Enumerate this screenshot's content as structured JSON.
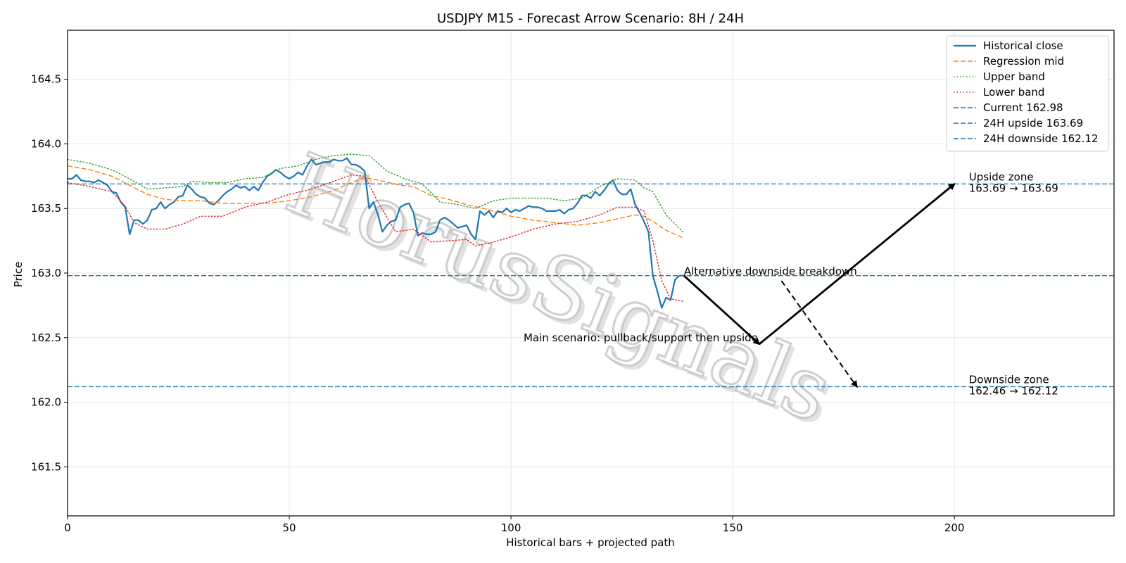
{
  "chart_data": {
    "type": "line",
    "title": "USDJPY M15 - Forecast Arrow Scenario: 8H / 24H",
    "xlabel": "Historical bars + projected path",
    "ylabel": "Price",
    "xlim": [
      0,
      236
    ],
    "ylim": [
      161.12,
      164.88
    ],
    "xticks": [
      0,
      50,
      100,
      150,
      200
    ],
    "yticks": [
      161.5,
      162.0,
      162.5,
      163.0,
      163.5,
      164.0,
      164.5
    ],
    "xtick_labels": [
      "0",
      "50",
      "100",
      "150",
      "200"
    ],
    "ytick_labels": [
      "161.5",
      "162.0",
      "162.5",
      "163.0",
      "163.5",
      "164.0",
      "164.5"
    ],
    "grid": true,
    "legend_position": "top-right",
    "series": [
      {
        "name": "Historical close",
        "color": "#1f77b4",
        "style": "solid",
        "points": [
          [
            0,
            163.73
          ],
          [
            1,
            163.73
          ],
          [
            2,
            163.76
          ],
          [
            3,
            163.72
          ],
          [
            4,
            163.71
          ],
          [
            5,
            163.71
          ],
          [
            6,
            163.7
          ],
          [
            7,
            163.72
          ],
          [
            8,
            163.7
          ],
          [
            9,
            163.68
          ],
          [
            10,
            163.63
          ],
          [
            11,
            163.62
          ],
          [
            12,
            163.55
          ],
          [
            13,
            163.51
          ],
          [
            14,
            163.3
          ],
          [
            15,
            163.41
          ],
          [
            16,
            163.41
          ],
          [
            17,
            163.38
          ],
          [
            18,
            163.41
          ],
          [
            19,
            163.49
          ],
          [
            20,
            163.5
          ],
          [
            21,
            163.55
          ],
          [
            22,
            163.5
          ],
          [
            23,
            163.53
          ],
          [
            24,
            163.55
          ],
          [
            25,
            163.59
          ],
          [
            26,
            163.6
          ],
          [
            27,
            163.68
          ],
          [
            28,
            163.65
          ],
          [
            29,
            163.61
          ],
          [
            30,
            163.59
          ],
          [
            31,
            163.58
          ],
          [
            32,
            163.54
          ],
          [
            33,
            163.53
          ],
          [
            34,
            163.56
          ],
          [
            35,
            163.6
          ],
          [
            36,
            163.63
          ],
          [
            37,
            163.65
          ],
          [
            38,
            163.68
          ],
          [
            39,
            163.66
          ],
          [
            40,
            163.67
          ],
          [
            41,
            163.64
          ],
          [
            42,
            163.67
          ],
          [
            43,
            163.64
          ],
          [
            44,
            163.7
          ],
          [
            45,
            163.75
          ],
          [
            46,
            163.77
          ],
          [
            47,
            163.8
          ],
          [
            48,
            163.78
          ],
          [
            49,
            163.75
          ],
          [
            50,
            163.73
          ],
          [
            51,
            163.75
          ],
          [
            52,
            163.78
          ],
          [
            53,
            163.76
          ],
          [
            54,
            163.83
          ],
          [
            55,
            163.88
          ],
          [
            56,
            163.84
          ],
          [
            57,
            163.85
          ],
          [
            58,
            163.86
          ],
          [
            59,
            163.86
          ],
          [
            60,
            163.88
          ],
          [
            61,
            163.87
          ],
          [
            62,
            163.87
          ],
          [
            63,
            163.89
          ],
          [
            64,
            163.84
          ],
          [
            65,
            163.84
          ],
          [
            66,
            163.82
          ],
          [
            67,
            163.79
          ],
          [
            68,
            163.5
          ],
          [
            69,
            163.55
          ],
          [
            70,
            163.45
          ],
          [
            71,
            163.32
          ],
          [
            72,
            163.37
          ],
          [
            73,
            163.4
          ],
          [
            74,
            163.41
          ],
          [
            75,
            163.51
          ],
          [
            76,
            163.53
          ],
          [
            77,
            163.54
          ],
          [
            78,
            163.47
          ],
          [
            79,
            163.29
          ],
          [
            80,
            163.31
          ],
          [
            81,
            163.3
          ],
          [
            82,
            163.3
          ],
          [
            83,
            163.32
          ],
          [
            84,
            163.41
          ],
          [
            85,
            163.43
          ],
          [
            86,
            163.41
          ],
          [
            87,
            163.38
          ],
          [
            88,
            163.35
          ],
          [
            89,
            163.36
          ],
          [
            90,
            163.37
          ],
          [
            91,
            163.3
          ],
          [
            92,
            163.26
          ],
          [
            93,
            163.48
          ],
          [
            94,
            163.45
          ],
          [
            95,
            163.48
          ],
          [
            96,
            163.43
          ],
          [
            97,
            163.48
          ],
          [
            98,
            163.47
          ],
          [
            99,
            163.5
          ],
          [
            100,
            163.47
          ],
          [
            101,
            163.49
          ],
          [
            102,
            163.48
          ],
          [
            103,
            163.5
          ],
          [
            104,
            163.52
          ],
          [
            105,
            163.51
          ],
          [
            106,
            163.51
          ],
          [
            107,
            163.5
          ],
          [
            108,
            163.48
          ],
          [
            109,
            163.48
          ],
          [
            110,
            163.48
          ],
          [
            111,
            163.49
          ],
          [
            112,
            163.46
          ],
          [
            113,
            163.49
          ],
          [
            114,
            163.5
          ],
          [
            115,
            163.54
          ],
          [
            116,
            163.6
          ],
          [
            117,
            163.6
          ],
          [
            118,
            163.58
          ],
          [
            119,
            163.63
          ],
          [
            120,
            163.6
          ],
          [
            121,
            163.64
          ],
          [
            122,
            163.69
          ],
          [
            123,
            163.72
          ],
          [
            124,
            163.64
          ],
          [
            125,
            163.61
          ],
          [
            126,
            163.61
          ],
          [
            127,
            163.65
          ],
          [
            128,
            163.53
          ],
          [
            129,
            163.47
          ],
          [
            130,
            163.4
          ],
          [
            131,
            163.32
          ],
          [
            132,
            162.98
          ],
          [
            133,
            162.86
          ],
          [
            134,
            162.73
          ],
          [
            135,
            162.81
          ],
          [
            136,
            162.79
          ],
          [
            137,
            162.95
          ],
          [
            138,
            162.98
          ],
          [
            139,
            162.98
          ]
        ]
      },
      {
        "name": "Regression mid",
        "color": "#ff7f0e",
        "style": "dashed",
        "points": [
          [
            0,
            163.83
          ],
          [
            5,
            163.8
          ],
          [
            10,
            163.75
          ],
          [
            14,
            163.68
          ],
          [
            18,
            163.61
          ],
          [
            22,
            163.57
          ],
          [
            26,
            163.56
          ],
          [
            30,
            163.56
          ],
          [
            35,
            163.54
          ],
          [
            40,
            163.54
          ],
          [
            45,
            163.54
          ],
          [
            50,
            163.56
          ],
          [
            55,
            163.59
          ],
          [
            60,
            163.64
          ],
          [
            64,
            163.7
          ],
          [
            67,
            163.74
          ],
          [
            70,
            163.72
          ],
          [
            75,
            163.68
          ],
          [
            78,
            163.67
          ],
          [
            82,
            163.6
          ],
          [
            86,
            163.57
          ],
          [
            90,
            163.53
          ],
          [
            95,
            163.49
          ],
          [
            100,
            163.44
          ],
          [
            105,
            163.41
          ],
          [
            110,
            163.39
          ],
          [
            115,
            163.37
          ],
          [
            120,
            163.39
          ],
          [
            124,
            163.42
          ],
          [
            128,
            163.45
          ],
          [
            130,
            163.44
          ],
          [
            132,
            163.4
          ],
          [
            135,
            163.33
          ],
          [
            139,
            163.27
          ]
        ]
      },
      {
        "name": "Upper band",
        "color": "#2ca02c",
        "style": "dotted",
        "points": [
          [
            0,
            163.88
          ],
          [
            5,
            163.85
          ],
          [
            10,
            163.8
          ],
          [
            14,
            163.73
          ],
          [
            18,
            163.65
          ],
          [
            22,
            163.66
          ],
          [
            26,
            163.67
          ],
          [
            28,
            163.71
          ],
          [
            32,
            163.7
          ],
          [
            36,
            163.7
          ],
          [
            40,
            163.73
          ],
          [
            44,
            163.74
          ],
          [
            48,
            163.81
          ],
          [
            52,
            163.83
          ],
          [
            56,
            163.88
          ],
          [
            60,
            163.91
          ],
          [
            64,
            163.92
          ],
          [
            68,
            163.91
          ],
          [
            72,
            163.79
          ],
          [
            76,
            163.73
          ],
          [
            80,
            163.69
          ],
          [
            84,
            163.55
          ],
          [
            88,
            163.53
          ],
          [
            92,
            163.5
          ],
          [
            96,
            163.56
          ],
          [
            100,
            163.58
          ],
          [
            104,
            163.58
          ],
          [
            108,
            163.58
          ],
          [
            112,
            163.56
          ],
          [
            116,
            163.58
          ],
          [
            120,
            163.67
          ],
          [
            124,
            163.73
          ],
          [
            128,
            163.72
          ],
          [
            130,
            163.66
          ],
          [
            132,
            163.63
          ],
          [
            135,
            163.45
          ],
          [
            139,
            163.31
          ]
        ]
      },
      {
        "name": "Lower band",
        "color": "#d62728",
        "style": "dotted",
        "points": [
          [
            0,
            163.7
          ],
          [
            5,
            163.67
          ],
          [
            10,
            163.63
          ],
          [
            13,
            163.52
          ],
          [
            15,
            163.39
          ],
          [
            18,
            163.34
          ],
          [
            22,
            163.34
          ],
          [
            26,
            163.38
          ],
          [
            30,
            163.44
          ],
          [
            35,
            163.44
          ],
          [
            40,
            163.51
          ],
          [
            45,
            163.55
          ],
          [
            50,
            163.61
          ],
          [
            55,
            163.65
          ],
          [
            60,
            163.71
          ],
          [
            64,
            163.76
          ],
          [
            67,
            163.75
          ],
          [
            70,
            163.55
          ],
          [
            74,
            163.32
          ],
          [
            78,
            163.34
          ],
          [
            82,
            163.24
          ],
          [
            86,
            163.25
          ],
          [
            90,
            163.26
          ],
          [
            92,
            163.21
          ],
          [
            96,
            163.24
          ],
          [
            100,
            163.28
          ],
          [
            105,
            163.34
          ],
          [
            110,
            163.38
          ],
          [
            115,
            163.4
          ],
          [
            120,
            163.45
          ],
          [
            124,
            163.51
          ],
          [
            128,
            163.51
          ],
          [
            130,
            163.48
          ],
          [
            132,
            163.25
          ],
          [
            134,
            162.94
          ],
          [
            136,
            162.8
          ],
          [
            139,
            162.78
          ]
        ]
      }
    ],
    "reference_lines": [
      {
        "name": "Current 162.98",
        "y": 162.98,
        "color": "#1f77b4",
        "style": "dashed"
      },
      {
        "name": "24H upside 163.69",
        "y": 163.69,
        "color": "#1f77b4",
        "style": "dashed"
      },
      {
        "name": "24H downside 162.12",
        "y": 162.12,
        "color": "#1f77b4",
        "style": "dashed"
      }
    ],
    "arrows": [
      {
        "name": "main-pullback",
        "from": [
          139,
          162.98
        ],
        "to": [
          156,
          162.45
        ],
        "style": "solid"
      },
      {
        "name": "main-upside",
        "from": [
          156,
          162.45
        ],
        "to": [
          200,
          163.69
        ],
        "style": "solid"
      },
      {
        "name": "alt-downside",
        "from": [
          161,
          162.94
        ],
        "to": [
          178,
          162.12
        ],
        "style": "dashed"
      }
    ],
    "annotations": [
      {
        "name": "upside-zone-label",
        "lines": [
          "Upside zone",
          "163.69 → 163.69"
        ],
        "x": 202,
        "y": 163.69
      },
      {
        "name": "downside-zone-label",
        "lines": [
          "Downside zone",
          "162.46 → 162.12"
        ],
        "x": 202,
        "y": 162.12
      },
      {
        "name": "alt-scenario-label",
        "lines": [
          "Alternative downside breakdown"
        ],
        "x": 139,
        "y": 162.98
      },
      {
        "name": "main-scenario-label",
        "lines": [
          "Main scenario: pullback/support then upside"
        ],
        "x": 156,
        "y": 162.5
      }
    ],
    "watermark": "HorusSignals"
  }
}
